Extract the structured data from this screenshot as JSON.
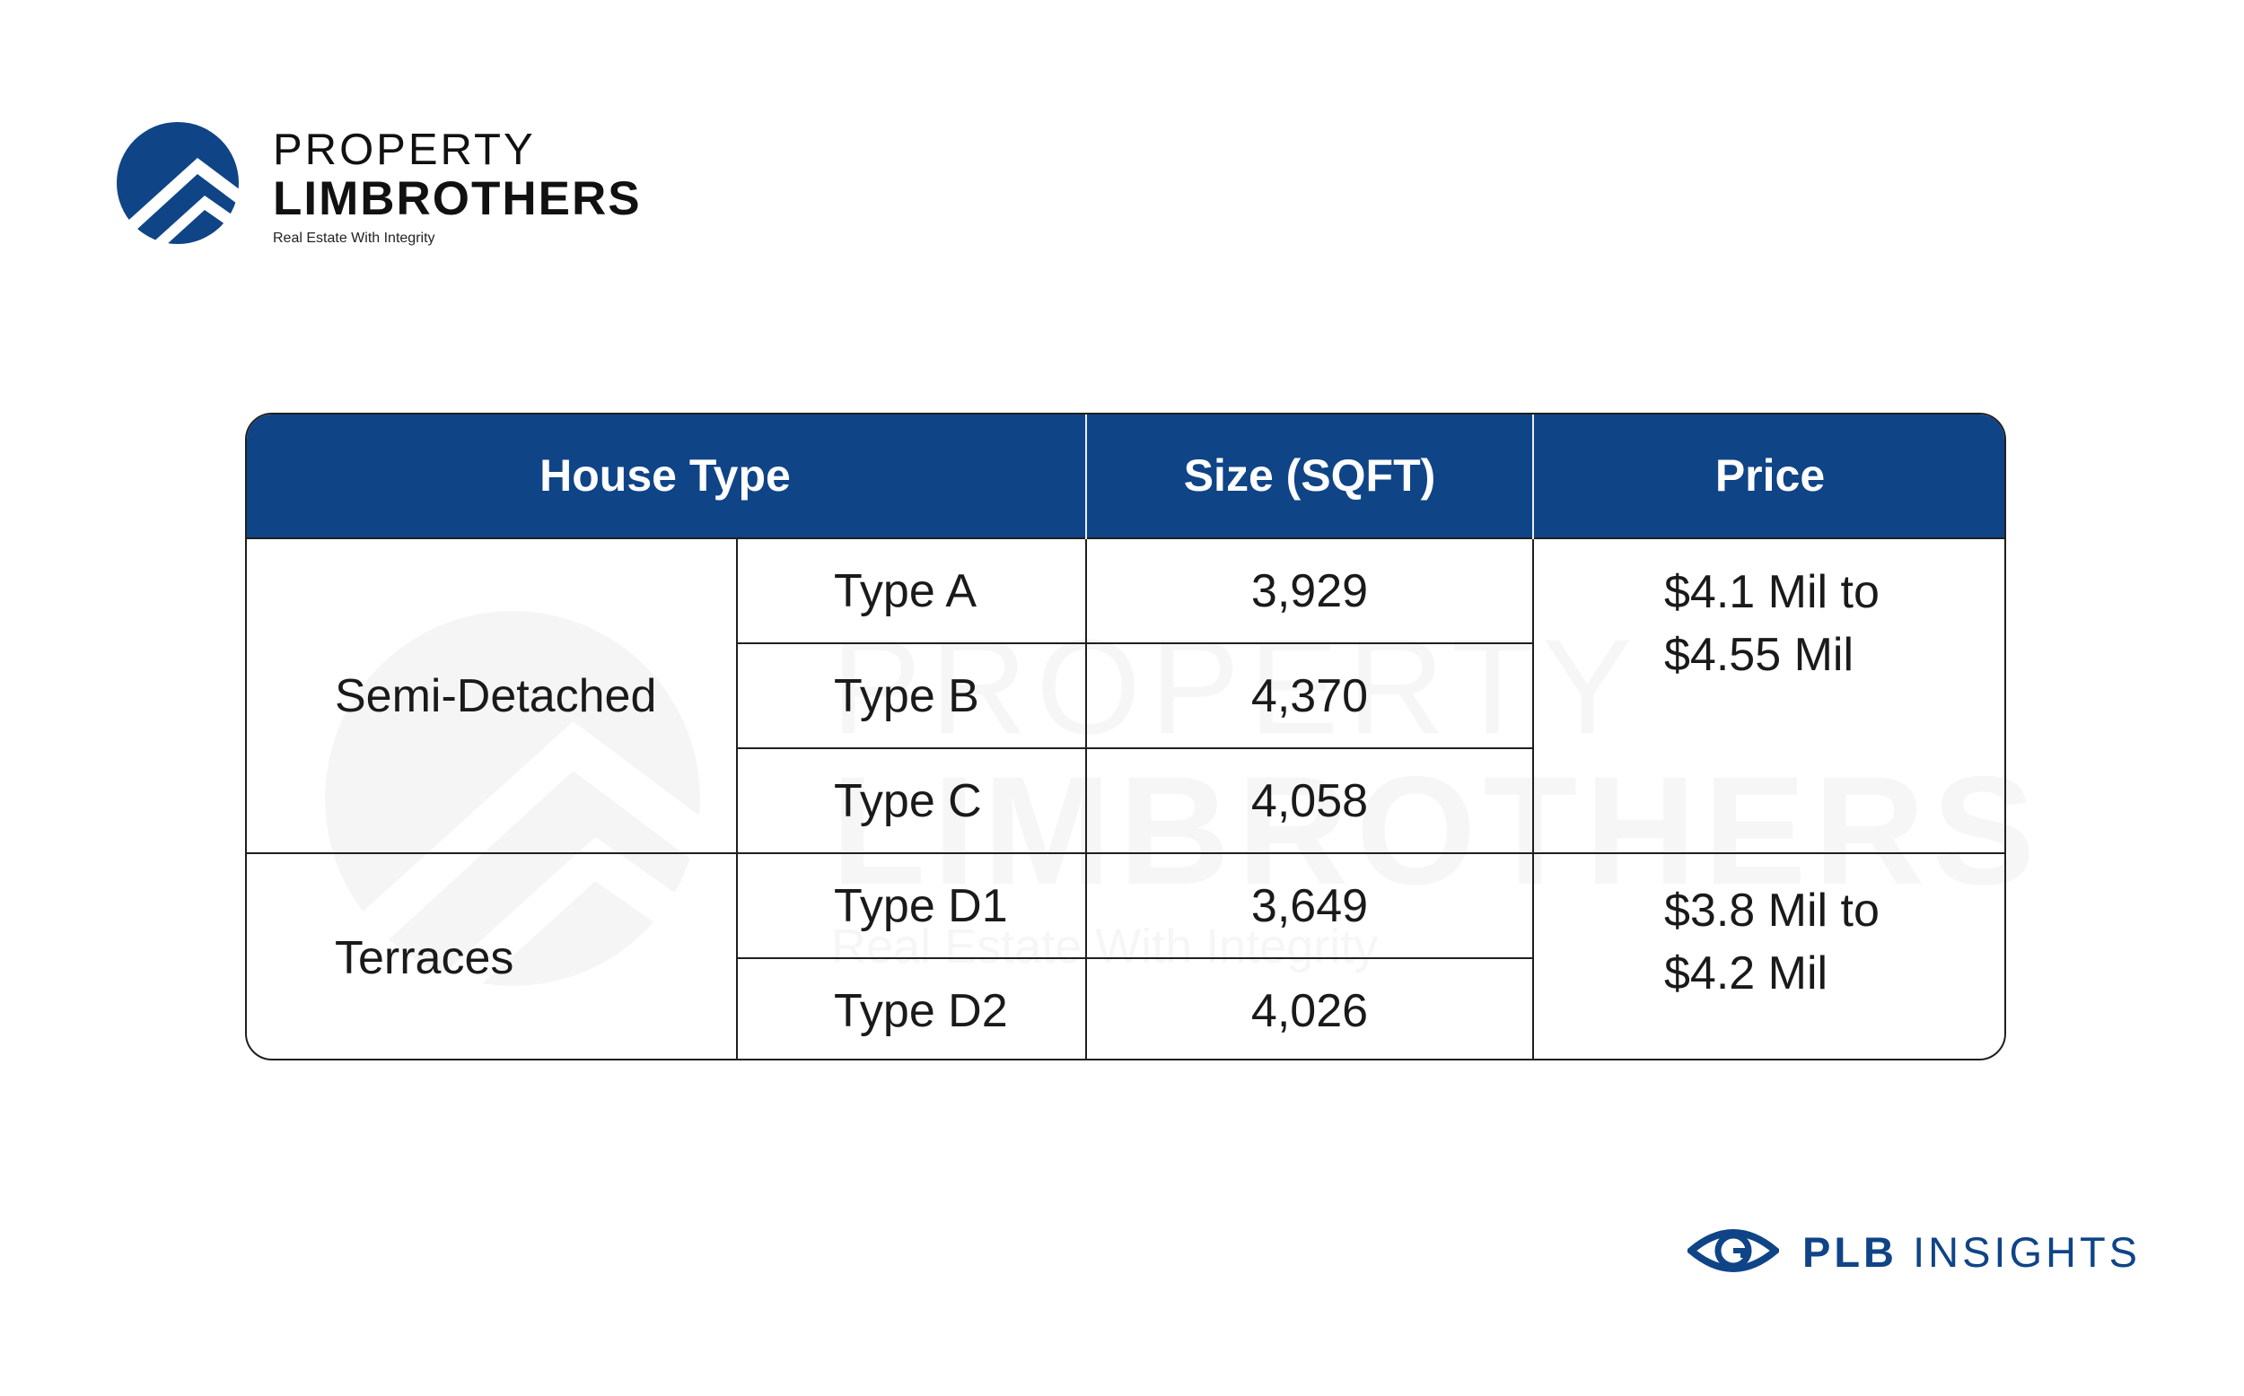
{
  "logo": {
    "line1": "PROPERTY",
    "line2": "LIMBROTHERS",
    "tagline": "Real Estate With Integrity",
    "icon": "house-roof-circle-logo"
  },
  "watermark": {
    "line1": "PROPERTY",
    "line2": "LIMBROTHERS",
    "tagline": "Real Estate With Integrity"
  },
  "table": {
    "headers": [
      "House Type",
      "Size (SQFT)",
      "Price"
    ],
    "groups": [
      {
        "name": "Semi-Detached",
        "rows": [
          {
            "type": "Type A",
            "size": "3,929"
          },
          {
            "type": "Type B",
            "size": "4,370"
          },
          {
            "type": "Type C",
            "size": "4,058"
          }
        ],
        "price_line1": "$4.1 Mil to",
        "price_line2": "$4.55 Mil"
      },
      {
        "name": "Terraces",
        "rows": [
          {
            "type": "Type D1",
            "size": "3,649"
          },
          {
            "type": "Type D2",
            "size": "4,026"
          }
        ],
        "price_line1": "$3.8 Mil to",
        "price_line2": "$4.2 Mil"
      }
    ]
  },
  "insights": {
    "bold": "PLB",
    "rest": "INSIGHTS",
    "icon": "eye-icon"
  },
  "colors": {
    "brand_blue": "#0f4487",
    "header_text": "#ffffff",
    "border": "#1f1f1f"
  }
}
